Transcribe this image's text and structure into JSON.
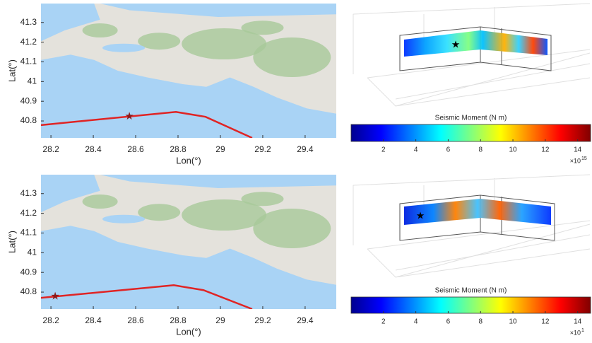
{
  "chart_data": [
    {
      "type": "line",
      "xlabel": "Lon(°)",
      "ylabel": "Lat(°)",
      "xlim": [
        28.153,
        29.547
      ],
      "ylim": [
        40.714,
        41.396
      ],
      "xticks": [
        28.2,
        28.4,
        28.6,
        28.8,
        29,
        29.2,
        29.4
      ],
      "yticks": [
        40.8,
        40.9,
        41,
        41.1,
        41.2,
        41.3
      ],
      "x": [
        28.153,
        28.79,
        28.93,
        29.15
      ],
      "values": [
        40.779,
        40.846,
        40.821,
        40.714
      ],
      "color": "#e02424",
      "epicenter": {
        "x": 28.57,
        "y": 40.825,
        "color": "#8b1a1a"
      }
    },
    {
      "type": "colorbar",
      "label": "Seismic Moment (N m)",
      "clim": [
        0,
        14.8
      ],
      "ticks": [
        2,
        4,
        6,
        8,
        10,
        12,
        14
      ],
      "exponent_base": "×10",
      "exponent": "15",
      "colormap": "jet"
    },
    {
      "type": "line",
      "xlabel": "Lon(°)",
      "ylabel": "Lat(°)",
      "xlim": [
        28.153,
        29.547
      ],
      "ylim": [
        40.714,
        41.396
      ],
      "xticks": [
        28.2,
        28.4,
        28.6,
        28.8,
        29,
        29.2,
        29.4
      ],
      "yticks": [
        40.8,
        40.9,
        41,
        41.1,
        41.2,
        41.3
      ],
      "x": [
        28.153,
        28.78,
        28.92,
        29.15
      ],
      "values": [
        40.771,
        40.835,
        40.81,
        40.714
      ],
      "color": "#e02424",
      "epicenter": {
        "x": 28.22,
        "y": 40.78,
        "color": "#8b1a1a"
      }
    },
    {
      "type": "colorbar",
      "label": "Seismic Moment (N m)",
      "clim": [
        0,
        14.8
      ],
      "ticks": [
        2,
        4,
        6,
        8,
        10,
        12,
        14
      ],
      "exponent_base": "×10",
      "exponent": "1",
      "colormap": "jet"
    }
  ]
}
